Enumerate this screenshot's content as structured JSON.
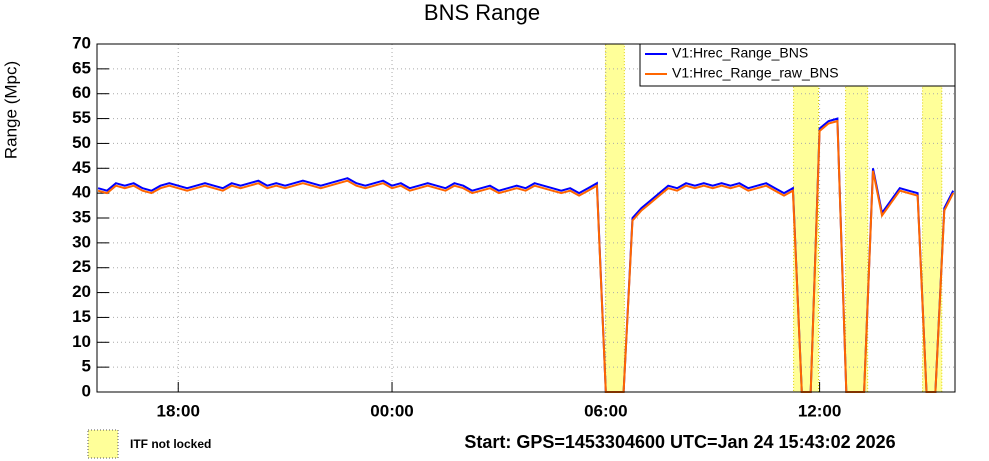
{
  "chart_data": {
    "type": "line",
    "title": "BNS Range",
    "y_label": "Range (Mpc)",
    "x": [
      15.75,
      16,
      16.25,
      16.5,
      16.75,
      17,
      17.25,
      17.5,
      17.75,
      18,
      18.25,
      18.5,
      18.75,
      19,
      19.25,
      19.5,
      19.75,
      20,
      20.25,
      20.5,
      20.75,
      21,
      21.25,
      21.5,
      21.75,
      22,
      22.25,
      22.5,
      22.75,
      23,
      23.25,
      23.5,
      23.75,
      24,
      24.25,
      24.5,
      24.75,
      25,
      25.25,
      25.5,
      25.75,
      26,
      26.25,
      26.5,
      26.75,
      27,
      27.25,
      27.5,
      27.75,
      28,
      28.25,
      28.5,
      28.75,
      29,
      29.25,
      29.5,
      29.75,
      30,
      30.25,
      30.5,
      30.75,
      31,
      31.25,
      31.5,
      31.75,
      32,
      32.25,
      32.5,
      32.75,
      33,
      33.25,
      33.5,
      33.75,
      34,
      34.25,
      34.5,
      34.75,
      35,
      35.25,
      35.5,
      35.75,
      36,
      36.25,
      36.5,
      36.75,
      37,
      37.25,
      37.5,
      37.75,
      38,
      38.25,
      38.5,
      38.75,
      39,
      39.25,
      39.5,
      39.75
    ],
    "series": [
      {
        "name": "V1:Hrec_Range_BNS",
        "color": "#0000ff",
        "values": [
          41,
          40.5,
          42,
          41.5,
          42,
          41,
          40.5,
          41.5,
          42,
          41.5,
          41,
          41.5,
          42,
          41.5,
          41,
          42,
          41.5,
          42,
          42.5,
          41.5,
          42,
          41.5,
          42,
          42.5,
          42,
          41.5,
          42,
          42.5,
          43,
          42,
          41.5,
          42,
          42.5,
          41.5,
          42,
          41,
          41.5,
          42,
          41.5,
          41,
          42,
          41.5,
          40.5,
          41,
          41.5,
          40.5,
          41,
          41.5,
          41,
          42,
          41.5,
          41,
          40.5,
          41,
          40,
          41,
          42,
          0,
          0,
          0,
          35,
          37,
          38.5,
          40,
          41.5,
          41,
          42,
          41.5,
          42,
          41.5,
          42,
          41.5,
          42,
          41,
          41.5,
          42,
          41,
          40,
          41,
          0,
          0,
          53,
          54.5,
          55,
          0,
          0,
          0,
          45,
          36,
          38.5,
          41,
          40.5,
          40,
          0,
          0,
          37,
          40.5
        ]
      },
      {
        "name": "V1:Hrec_Range_raw_BNS",
        "color": "#ff6600",
        "values": [
          40.5,
          40,
          41.5,
          41,
          41.5,
          40.5,
          40,
          41,
          41.5,
          41,
          40.5,
          41,
          41.5,
          41,
          40.5,
          41.5,
          41,
          41.5,
          42,
          41,
          41.5,
          41,
          41.5,
          42,
          41.5,
          41,
          41.5,
          42,
          42.5,
          41.5,
          41,
          41.5,
          42,
          41,
          41.5,
          40.5,
          41,
          41.5,
          41,
          40.5,
          41.5,
          41,
          40,
          40.5,
          41,
          40,
          40.5,
          41,
          40.5,
          41.5,
          41,
          40.5,
          40,
          40.5,
          39.5,
          40.5,
          41.5,
          0,
          0,
          0,
          34.5,
          36.5,
          38,
          39.5,
          41,
          40.5,
          41.5,
          41,
          41.5,
          41,
          41.5,
          41,
          41.5,
          40.5,
          41,
          41.5,
          40.5,
          39.5,
          40.5,
          0,
          0,
          52.5,
          54,
          54.5,
          0,
          0,
          0,
          44.5,
          35.5,
          38,
          40.5,
          40,
          39.5,
          0,
          0,
          36.5,
          40
        ]
      }
    ],
    "unlocked_intervals": [
      [
        29.99,
        30.52
      ],
      [
        35.27,
        35.97
      ],
      [
        36.73,
        37.35
      ],
      [
        38.89,
        39.43
      ]
    ],
    "unlocked_label": "ITF not locked",
    "unlocked_color": "#ffff99",
    "xlim": [
      15.72,
      39.8
    ],
    "xticks": [
      {
        "value": 18,
        "label": "18:00"
      },
      {
        "value": 24,
        "label": "00:00"
      },
      {
        "value": 30,
        "label": "06:00"
      },
      {
        "value": 36,
        "label": "12:00"
      }
    ],
    "ylim": [
      0,
      70
    ],
    "yticks": [
      0,
      5,
      10,
      15,
      20,
      25,
      30,
      35,
      40,
      45,
      50,
      55,
      60,
      65,
      70
    ],
    "grid": true,
    "legend": "top-right",
    "footer": "Start: GPS=1453304600 UTC=Jan 24 15:43:02 2026"
  }
}
